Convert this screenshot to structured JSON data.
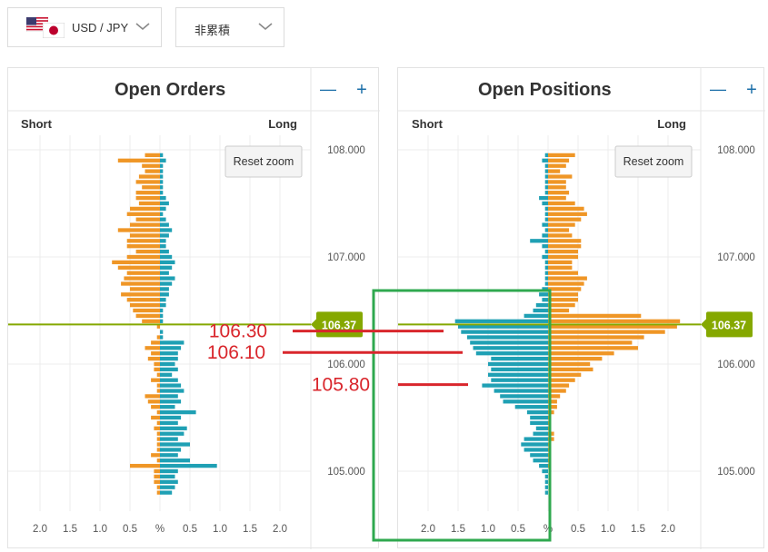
{
  "pair_selector": {
    "label": "USD / JPY",
    "icon": "us-jp-flags-icon"
  },
  "mode_selector": {
    "label": "非累積"
  },
  "zoom_out_label": "—",
  "zoom_in_label": "+",
  "reset_zoom_label": "Reset zoom",
  "colors": {
    "long": "#ef9626",
    "short": "#1fa0b4",
    "current_price": "#85a800",
    "annotation": "#d9262c",
    "highlight": "#2fa84f"
  },
  "chart_data": [
    {
      "type": "bar",
      "title": "Open Orders",
      "left_label": "Short",
      "right_label": "Long",
      "x_ticks": [
        "2.0",
        "1.5",
        "1.0",
        "0.5",
        "%",
        "0.5",
        "1.0",
        "1.5",
        "2.0"
      ],
      "y_ticks": [
        "108.000",
        "107.000",
        "106.000",
        "105.000"
      ],
      "ylim": [
        104.65,
        108.1
      ],
      "current_price": "106.37",
      "bucket_size": 0.05,
      "levels": [
        107.95,
        107.9,
        107.85,
        107.8,
        107.75,
        107.7,
        107.65,
        107.6,
        107.55,
        107.5,
        107.45,
        107.4,
        107.35,
        107.3,
        107.25,
        107.2,
        107.15,
        107.1,
        107.05,
        107.0,
        106.95,
        106.9,
        106.85,
        106.8,
        106.75,
        106.7,
        106.65,
        106.6,
        106.55,
        106.5,
        106.45,
        106.4,
        106.35,
        106.3,
        106.25,
        106.2,
        106.15,
        106.1,
        106.05,
        106.0,
        105.95,
        105.9,
        105.85,
        105.8,
        105.75,
        105.7,
        105.65,
        105.6,
        105.55,
        105.5,
        105.45,
        105.4,
        105.35,
        105.3,
        105.25,
        105.2,
        105.15,
        105.1,
        105.05,
        105.0,
        104.95,
        104.9,
        104.85,
        104.8
      ],
      "series": [
        {
          "name": "Short",
          "side": "left",
          "values": [
            0.25,
            0.7,
            0.3,
            0.25,
            0.35,
            0.4,
            0.3,
            0.4,
            0.4,
            0.35,
            0.5,
            0.55,
            0.4,
            0.5,
            0.7,
            0.5,
            0.55,
            0.55,
            0.4,
            0.55,
            0.8,
            0.7,
            0.55,
            0.6,
            0.65,
            0.5,
            0.65,
            0.55,
            0.5,
            0.45,
            0.4,
            0.3,
            0.05,
            0.0,
            0.05,
            0.15,
            0.25,
            0.15,
            0.2,
            0.1,
            0.1,
            0.05,
            0.15,
            0.05,
            0.05,
            0.25,
            0.2,
            0.15,
            0.05,
            0.15,
            0.05,
            0.1,
            0.05,
            0.05,
            0.05,
            0.05,
            0.15,
            0.05,
            0.5,
            0.1,
            0.1,
            0.1,
            0.05,
            0.05
          ]
        },
        {
          "name": "Long",
          "side": "right",
          "values": [
            0.05,
            0.1,
            0.05,
            0.05,
            0.05,
            0.05,
            0.05,
            0.05,
            0.1,
            0.15,
            0.1,
            0.05,
            0.1,
            0.15,
            0.2,
            0.15,
            0.1,
            0.1,
            0.15,
            0.2,
            0.25,
            0.2,
            0.15,
            0.25,
            0.2,
            0.15,
            0.15,
            0.1,
            0.1,
            0.05,
            0.05,
            0.05,
            0.0,
            0.05,
            0.05,
            0.4,
            0.35,
            0.3,
            0.3,
            0.25,
            0.3,
            0.2,
            0.3,
            0.35,
            0.4,
            0.3,
            0.35,
            0.25,
            0.6,
            0.35,
            0.3,
            0.45,
            0.4,
            0.3,
            0.5,
            0.35,
            0.3,
            0.5,
            0.95,
            0.3,
            0.25,
            0.3,
            0.25,
            0.2
          ]
        }
      ]
    },
    {
      "type": "bar",
      "title": "Open Positions",
      "left_label": "Short",
      "right_label": "Long",
      "x_ticks": [
        "2.0",
        "1.5",
        "1.0",
        "0.5",
        "%",
        "0.5",
        "1.0",
        "1.5",
        "2.0"
      ],
      "y_ticks": [
        "108.000",
        "107.000",
        "106.000",
        "105.000"
      ],
      "ylim": [
        104.65,
        108.1
      ],
      "current_price": "106.37",
      "bucket_size": 0.05,
      "levels": [
        107.95,
        107.9,
        107.85,
        107.8,
        107.75,
        107.7,
        107.65,
        107.6,
        107.55,
        107.5,
        107.45,
        107.4,
        107.35,
        107.3,
        107.25,
        107.2,
        107.15,
        107.1,
        107.05,
        107.0,
        106.95,
        106.9,
        106.85,
        106.8,
        106.75,
        106.7,
        106.65,
        106.6,
        106.55,
        106.5,
        106.45,
        106.4,
        106.35,
        106.3,
        106.25,
        106.2,
        106.15,
        106.1,
        106.05,
        106.0,
        105.95,
        105.9,
        105.85,
        105.8,
        105.75,
        105.7,
        105.65,
        105.6,
        105.55,
        105.5,
        105.45,
        105.4,
        105.35,
        105.3,
        105.25,
        105.2,
        105.15,
        105.1,
        105.05,
        105.0,
        104.95,
        104.9,
        104.85,
        104.8
      ],
      "series": [
        {
          "name": "Short",
          "side": "left",
          "values": [
            0.05,
            0.1,
            0.05,
            0.05,
            0.05,
            0.05,
            0.05,
            0.05,
            0.15,
            0.1,
            0.05,
            0.05,
            0.05,
            0.1,
            0.05,
            0.1,
            0.3,
            0.1,
            0.05,
            0.1,
            0.05,
            0.05,
            0.05,
            0.05,
            0.05,
            0.1,
            0.15,
            0.1,
            0.2,
            0.25,
            0.4,
            1.55,
            1.5,
            1.45,
            1.35,
            1.3,
            1.25,
            1.2,
            0.95,
            1.0,
            0.95,
            1.0,
            0.95,
            1.1,
            0.9,
            0.8,
            0.75,
            0.55,
            0.35,
            0.3,
            0.3,
            0.2,
            0.25,
            0.4,
            0.45,
            0.4,
            0.3,
            0.25,
            0.15,
            0.1,
            0.05,
            0.05,
            0.05,
            0.05
          ]
        },
        {
          "name": "Long",
          "side": "right",
          "values": [
            0.45,
            0.35,
            0.3,
            0.2,
            0.4,
            0.3,
            0.3,
            0.35,
            0.3,
            0.45,
            0.6,
            0.65,
            0.55,
            0.45,
            0.35,
            0.4,
            0.55,
            0.55,
            0.5,
            0.5,
            0.4,
            0.4,
            0.5,
            0.65,
            0.6,
            0.55,
            0.5,
            0.5,
            0.45,
            0.35,
            1.55,
            2.2,
            2.15,
            1.95,
            1.6,
            1.4,
            1.5,
            1.1,
            0.9,
            0.7,
            0.75,
            0.55,
            0.45,
            0.35,
            0.3,
            0.2,
            0.15,
            0.15,
            0.1,
            0.05,
            0.05,
            0.05,
            0.1,
            0.1,
            0.05,
            0.05,
            0.05,
            0.05,
            0.05,
            0.0,
            0.0,
            0.0,
            0.0,
            0.0
          ]
        }
      ]
    }
  ],
  "annotations": [
    {
      "label": "106.30",
      "value": 106.3
    },
    {
      "label": "106.10",
      "value": 106.1
    },
    {
      "label": "105.80",
      "value": 105.8
    }
  ]
}
